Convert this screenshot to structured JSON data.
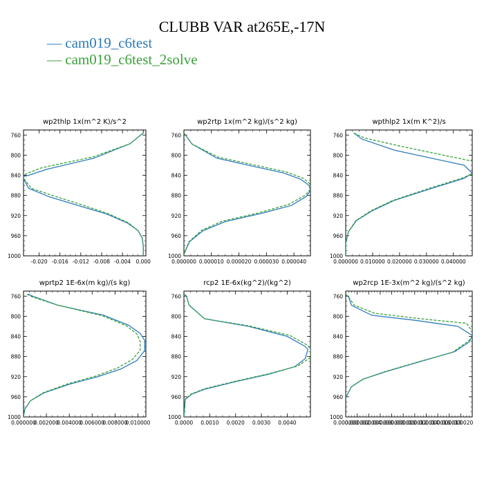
{
  "figure": {
    "title": "CLUBB VAR at265E,-17N",
    "legend": [
      "cam019_c6test",
      "cam019_c6test_2solve"
    ]
  },
  "colors": {
    "series1": "#2b7bba",
    "series2": "#3aa03a"
  },
  "chart_data": [
    {
      "type": "line",
      "title": "wp2thlp   1x(m^2 K)/s^2",
      "xlim": [
        -0.023,
        0.0005
      ],
      "ylim": [
        1000,
        750
      ],
      "y_inverted": true,
      "x_ticks": [
        -0.02,
        -0.016,
        -0.012,
        -0.008,
        -0.004,
        0.0
      ],
      "x_tick_labels": [
        "-0.020",
        "-0.016",
        "-0.012",
        "-0.008",
        "-0.004",
        "0.000"
      ],
      "y_ticks": [
        760,
        800,
        840,
        880,
        920,
        960,
        1000
      ],
      "series": [
        {
          "name": "cam019_c6test",
          "x": [
            0.0,
            -0.0005,
            -0.0025,
            -0.0095,
            -0.0185,
            -0.022,
            -0.0232,
            -0.022,
            -0.018,
            -0.0125,
            -0.007,
            -0.003,
            -0.001,
            -0.0002,
            0.0,
            0.0
          ],
          "y": [
            756,
            760,
            777,
            806,
            828,
            840,
            843,
            866,
            883,
            900,
            917,
            935,
            950,
            965,
            980,
            1000
          ]
        },
        {
          "name": "cam019_c6test_2solve",
          "x": [
            0.0,
            -0.0005,
            -0.0025,
            -0.0095,
            -0.0195,
            -0.0225,
            -0.0232,
            -0.0215,
            -0.0175,
            -0.012,
            -0.0068,
            -0.0029,
            -0.001,
            -0.0002,
            0.0,
            0.0
          ],
          "y": [
            756,
            760,
            777,
            803,
            825,
            837,
            843,
            866,
            880,
            898,
            916,
            934,
            950,
            965,
            980,
            1000
          ]
        }
      ]
    },
    {
      "type": "line",
      "title": "wp2rtp   1x(m^2 kg)/(s^2 kg)",
      "xlim": [
        0.0,
        4.6e-05
      ],
      "ylim": [
        1000,
        750
      ],
      "y_inverted": true,
      "x_ticks": [
        0.0,
        1e-05,
        2e-05,
        3e-05,
        4e-05
      ],
      "x_tick_labels": [
        "0.000000",
        "0.000010",
        "0.000020",
        "0.000030",
        "0.000040"
      ],
      "y_ticks": [
        760,
        800,
        840,
        880,
        920,
        960,
        1000
      ],
      "series": [
        {
          "name": "cam019_c6test",
          "x": [
            0.0,
            5e-07,
            3e-06,
            1.2e-05,
            2.5e-05,
            3.6e-05,
            4.25e-05,
            4.55e-05,
            4.6e-05,
            4.45e-05,
            3.9e-05,
            2.8e-05,
            1.5e-05,
            7e-06,
            2e-06,
            0.0
          ],
          "y": [
            756,
            760,
            778,
            806,
            822,
            835,
            848,
            860,
            870,
            882,
            900,
            916,
            932,
            950,
            972,
            997
          ]
        },
        {
          "name": "cam019_c6test_2solve",
          "x": [
            0.0,
            5e-07,
            3e-06,
            1.25e-05,
            2.6e-05,
            3.7e-05,
            4.35e-05,
            4.6e-05,
            4.6e-05,
            4.4e-05,
            3.8e-05,
            2.7e-05,
            1.4e-05,
            6.5e-06,
            1.8e-06,
            0.0
          ],
          "y": [
            756,
            760,
            778,
            804,
            820,
            833,
            846,
            858,
            868,
            880,
            898,
            915,
            931,
            949,
            972,
            997
          ]
        }
      ]
    },
    {
      "type": "line",
      "title": "wpthlp2   1x(m K^2)/s",
      "xlim": [
        0.0,
        0.047
      ],
      "ylim": [
        1000,
        750
      ],
      "y_inverted": true,
      "x_ticks": [
        0.0,
        0.01,
        0.02,
        0.03,
        0.04
      ],
      "x_tick_labels": [
        "0.000000",
        "0.010000",
        "0.020000",
        "0.030000",
        "0.040000"
      ],
      "y_ticks": [
        760,
        800,
        840,
        880,
        920,
        960,
        1000
      ],
      "series": [
        {
          "name": "cam019_c6test",
          "x": [
            0.003,
            0.006,
            0.018,
            0.044,
            0.047,
            0.044,
            0.032,
            0.018,
            0.01,
            0.004,
            0.001,
            0.0,
            0.0
          ],
          "y": [
            756,
            768,
            790,
            820,
            836,
            846,
            866,
            890,
            910,
            930,
            952,
            975,
            1000
          ]
        },
        {
          "name": "cam019_c6test_2solve",
          "x": [
            0.003,
            0.007,
            0.021,
            0.047,
            0.0475,
            0.043,
            0.031,
            0.0175,
            0.0095,
            0.0038,
            0.001,
            0.0,
            0.0
          ],
          "y": [
            756,
            766,
            783,
            812,
            836,
            846,
            866,
            890,
            910,
            930,
            952,
            975,
            1000
          ]
        }
      ]
    },
    {
      "type": "line",
      "title": "wprtp2   1E-6x(m kg)/(s kg)",
      "xlim": [
        0.0,
        0.0107
      ],
      "ylim": [
        1000,
        750
      ],
      "y_inverted": true,
      "x_ticks": [
        0.0,
        0.002,
        0.004,
        0.006,
        0.008,
        0.01
      ],
      "x_tick_labels": [
        "0.000000",
        "0.002000",
        "0.004000",
        "0.006000",
        "0.008000",
        "0.010000"
      ],
      "y_ticks": [
        760,
        800,
        840,
        880,
        920,
        960,
        1000
      ],
      "series": [
        {
          "name": "cam019_c6test",
          "x": [
            0.0004,
            0.0008,
            0.003,
            0.007,
            0.0092,
            0.0102,
            0.0106,
            0.0106,
            0.0099,
            0.0085,
            0.0065,
            0.004,
            0.0018,
            0.0006,
            0.0001,
            0.0
          ],
          "y": [
            756,
            760,
            778,
            798,
            818,
            834,
            848,
            868,
            888,
            905,
            920,
            935,
            952,
            968,
            985,
            1000
          ]
        },
        {
          "name": "cam019_c6test_2solve",
          "x": [
            0.0003,
            0.0007,
            0.003,
            0.0069,
            0.009,
            0.0099,
            0.0102,
            0.0102,
            0.0095,
            0.0082,
            0.0063,
            0.0039,
            0.0017,
            0.0006,
            0.0001,
            0.0
          ],
          "y": [
            756,
            761,
            778,
            799,
            819,
            835,
            850,
            868,
            886,
            903,
            919,
            934,
            952,
            968,
            985,
            1000
          ]
        }
      ]
    },
    {
      "type": "line",
      "title": "rcp2   1E-6x(kg^2)/(kg^2)",
      "xlim": [
        0.0,
        0.0049
      ],
      "ylim": [
        1000,
        750
      ],
      "y_inverted": true,
      "x_ticks": [
        0.0,
        0.001,
        0.002,
        0.003,
        0.004
      ],
      "x_tick_labels": [
        "0.0000",
        "0.0010",
        "0.0020",
        "0.0030",
        "0.0040"
      ],
      "y_ticks": [
        760,
        800,
        840,
        880,
        920,
        960,
        1000
      ],
      "series": [
        {
          "name": "cam019_c6test",
          "x": [
            0.0,
            0.0001,
            0.0002,
            0.0008,
            0.0025,
            0.004,
            0.0047,
            0.0048,
            0.0047,
            0.0043,
            0.0033,
            0.002,
            0.0008,
            0.0003,
            5e-05,
            0.0
          ],
          "y": [
            756,
            760,
            778,
            805,
            820,
            840,
            860,
            866,
            884,
            900,
            915,
            930,
            945,
            955,
            965,
            1000
          ]
        },
        {
          "name": "cam019_c6test_2solve",
          "x": [
            0.0,
            0.0001,
            0.0002,
            0.0008,
            0.0025,
            0.0041,
            0.0048,
            0.0049,
            0.0049,
            0.0044,
            0.0033,
            0.002,
            0.0008,
            0.0003,
            5e-05,
            0.0
          ],
          "y": [
            756,
            760,
            778,
            805,
            819,
            838,
            858,
            866,
            882,
            899,
            914,
            929,
            944,
            954,
            964,
            1000
          ]
        }
      ]
    },
    {
      "type": "line",
      "title": "wp2rcp   1E-3x(m^2 kg)/(s^2 kg)",
      "xlim": [
        0.0,
        2.2e-05
      ],
      "ylim": [
        1000,
        750
      ],
      "y_inverted": true,
      "x_ticks": [
        0.0,
        2e-06,
        4e-06,
        6e-06,
        8e-06,
        1e-05,
        1.2e-05,
        1.4e-05,
        1.6e-05,
        1.8e-05,
        2e-05
      ],
      "x_tick_labels": [
        "0.000000",
        "0.000002",
        "0.000004",
        "0.000006",
        "0.000008",
        "0.000010",
        "0.000012",
        "0.000014",
        "0.000016",
        "0.000018",
        "0.000020"
      ],
      "y_ticks": [
        760,
        800,
        840,
        880,
        920,
        960,
        1000
      ],
      "series": [
        {
          "name": "cam019_c6test",
          "x": [
            0.0,
            5e-07,
            1e-06,
            4.5e-06,
            1.2e-05,
            1.95e-05,
            2.2e-05,
            2.15e-05,
            1.9e-05,
            1.3e-05,
            7e-06,
            3e-06,
            1e-06,
            0.0
          ],
          "y": [
            756,
            762,
            778,
            798,
            808,
            820,
            838,
            851,
            870,
            890,
            910,
            925,
            940,
            962
          ]
        },
        {
          "name": "cam019_c6test_2solve",
          "x": [
            0.0,
            5e-07,
            1.5e-06,
            5e-06,
            1.3e-05,
            2.1e-05,
            2.25e-05,
            2.1e-05,
            1.85e-05,
            1.25e-05,
            6.8e-06,
            3e-06,
            1e-06,
            0.0
          ],
          "y": [
            756,
            762,
            778,
            794,
            805,
            814,
            838,
            852,
            872,
            891,
            910,
            925,
            940,
            962
          ]
        }
      ]
    }
  ]
}
